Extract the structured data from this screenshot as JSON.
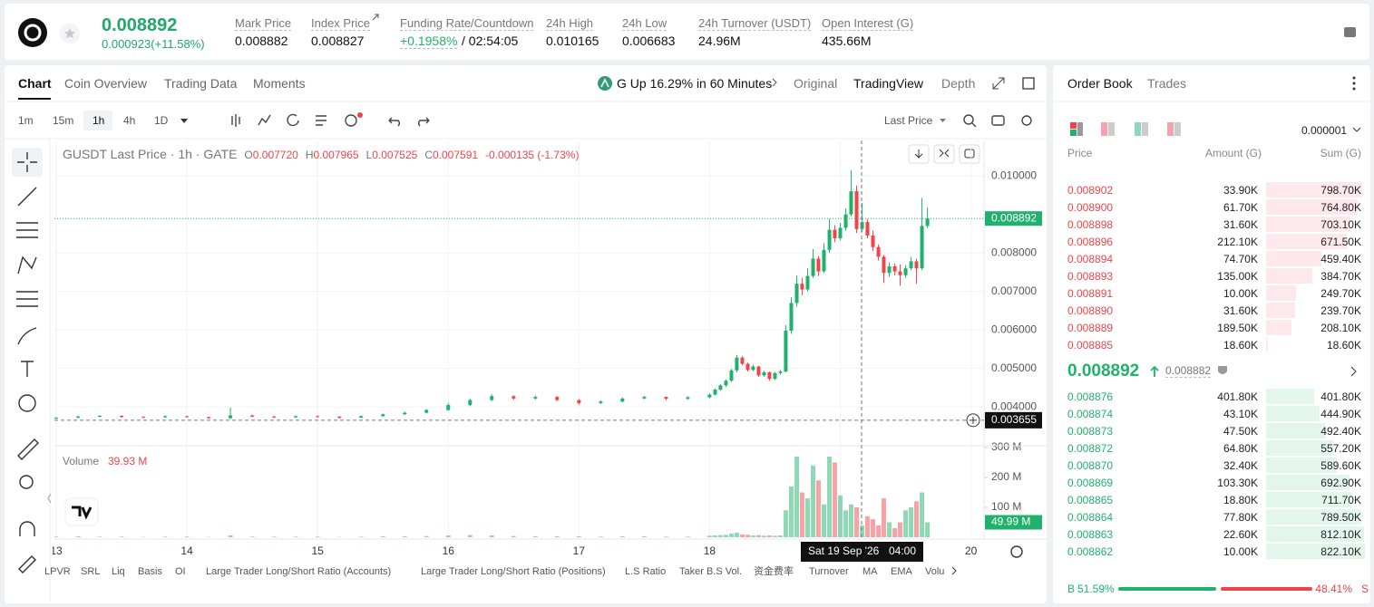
{
  "header": {
    "price": "0.008892",
    "change": "0.000923(+11.58%)",
    "stats": [
      {
        "label": "Mark Price",
        "value": "0.008882"
      },
      {
        "label": "Index Price",
        "value": "0.008827"
      },
      {
        "label": "Funding Rate/Countdown",
        "value": "+0.1958%",
        "countdown": "/ 02:54:05"
      },
      {
        "label": "24h High",
        "value": "0.010165"
      },
      {
        "label": "24h Low",
        "value": "0.006683"
      },
      {
        "label": "24h Turnover (USDT)",
        "value": "24.96M"
      },
      {
        "label": "Open Interest (G)",
        "value": "435.66M"
      }
    ]
  },
  "tabs": [
    "Chart",
    "Coin Overview",
    "Trading Data",
    "Moments"
  ],
  "banner": "G Up 16.29% in 60 Minutes",
  "views": [
    "Original",
    "TradingView",
    "Depth"
  ],
  "intervals": [
    "1m",
    "15m",
    "1h",
    "4h",
    "1D"
  ],
  "price_source": "Last Price",
  "indicators": [
    "LPVR",
    "SRL",
    "Liq",
    "Basis",
    "OI",
    "Large Trader Long/Short Ratio (Accounts)",
    "Large Trader Long/Short Ratio (Positions)",
    "L.S Ratio",
    "Taker B.S Vol.",
    "资金费率",
    "Turnover",
    "MA",
    "EMA",
    "Volu"
  ],
  "chart_data": {
    "type": "candlestick",
    "title": "GUSDT Last Price · 1h · GATE",
    "ohlc_legend": [
      {
        "key": "O",
        "value": "0.007720"
      },
      {
        "key": "H",
        "value": "0.007965"
      },
      {
        "key": "L",
        "value": "0.007525"
      },
      {
        "key": "C",
        "value": "0.007591"
      }
    ],
    "change": "-0.000135 (-1.73%)",
    "x": [
      13,
      13.167,
      13.333,
      13.5,
      13.667,
      13.833,
      14,
      14.167,
      14.333,
      14.5,
      14.667,
      14.833,
      15,
      15.167,
      15.333,
      15.5,
      15.667,
      15.833,
      16,
      16.167,
      16.333,
      16.5,
      16.667,
      16.833,
      17,
      17.167,
      17.333,
      17.5,
      17.667,
      17.833,
      18,
      18.042,
      18.083,
      18.125,
      18.167,
      18.208,
      18.25,
      18.292,
      18.333,
      18.375,
      18.417,
      18.458,
      18.5,
      18.542,
      18.583,
      18.625,
      18.667,
      18.708,
      18.75,
      18.792,
      18.833,
      18.875,
      18.917,
      18.958,
      19,
      19.042,
      19.083,
      19.125,
      19.167,
      19.208,
      19.25,
      19.292,
      19.333,
      19.375,
      19.417,
      19.458,
      19.5,
      19.542,
      19.583,
      19.625,
      19.667
    ],
    "ohlc": [
      [
        0.0037,
        0.00374,
        0.00369,
        0.00372
      ],
      [
        0.00372,
        0.00377,
        0.00371,
        0.00375
      ],
      [
        0.00375,
        0.00379,
        0.00373,
        0.00377
      ],
      [
        0.00377,
        0.00378,
        0.00372,
        0.00374
      ],
      [
        0.00374,
        0.00376,
        0.00371,
        0.00373
      ],
      [
        0.00373,
        0.00378,
        0.00372,
        0.00376
      ],
      [
        0.00376,
        0.00377,
        0.00372,
        0.00374
      ],
      [
        0.00374,
        0.00375,
        0.00369,
        0.00371
      ],
      [
        0.00371,
        0.00398,
        0.00368,
        0.00378
      ],
      [
        0.00378,
        0.0038,
        0.00373,
        0.00375
      ],
      [
        0.00375,
        0.00377,
        0.00371,
        0.00373
      ],
      [
        0.00373,
        0.00378,
        0.00372,
        0.00376
      ],
      [
        0.00376,
        0.00378,
        0.00373,
        0.00375
      ],
      [
        0.00375,
        0.00376,
        0.0037,
        0.00372
      ],
      [
        0.00372,
        0.00378,
        0.00371,
        0.00376
      ],
      [
        0.00376,
        0.00383,
        0.00375,
        0.00381
      ],
      [
        0.00381,
        0.00388,
        0.00379,
        0.00385
      ],
      [
        0.00385,
        0.00395,
        0.00383,
        0.00392
      ],
      [
        0.00392,
        0.0041,
        0.0039,
        0.00405
      ],
      [
        0.00405,
        0.00422,
        0.00402,
        0.00418
      ],
      [
        0.00418,
        0.00433,
        0.00415,
        0.00428
      ],
      [
        0.00428,
        0.0043,
        0.00418,
        0.00422
      ],
      [
        0.00422,
        0.0043,
        0.00419,
        0.00426
      ],
      [
        0.00426,
        0.00428,
        0.00415,
        0.00418
      ],
      [
        0.00418,
        0.0042,
        0.00406,
        0.0041
      ],
      [
        0.0041,
        0.00417,
        0.00408,
        0.00414
      ],
      [
        0.00414,
        0.00425,
        0.00412,
        0.00422
      ],
      [
        0.00422,
        0.00429,
        0.0042,
        0.00426
      ],
      [
        0.00426,
        0.00427,
        0.00418,
        0.00421
      ],
      [
        0.00421,
        0.00428,
        0.00419,
        0.00425
      ],
      [
        0.00425,
        0.00435,
        0.00423,
        0.00432
      ],
      [
        0.00432,
        0.00448,
        0.0043,
        0.00445
      ],
      [
        0.00445,
        0.00459,
        0.00442,
        0.00456
      ],
      [
        0.00456,
        0.00471,
        0.00452,
        0.00468
      ],
      [
        0.00468,
        0.00499,
        0.00465,
        0.00495
      ],
      [
        0.00495,
        0.00535,
        0.0049,
        0.00528
      ],
      [
        0.00528,
        0.00532,
        0.00508,
        0.00512
      ],
      [
        0.00512,
        0.00515,
        0.00492,
        0.00496
      ],
      [
        0.00496,
        0.0051,
        0.00493,
        0.00505
      ],
      [
        0.00505,
        0.00507,
        0.00478,
        0.00482
      ],
      [
        0.00482,
        0.00494,
        0.00479,
        0.0049
      ],
      [
        0.0049,
        0.00492,
        0.00468,
        0.00473
      ],
      [
        0.00473,
        0.00491,
        0.0047,
        0.00488
      ],
      [
        0.00488,
        0.00496,
        0.00484,
        0.00492
      ],
      [
        0.00492,
        0.00612,
        0.0049,
        0.00598
      ],
      [
        0.00598,
        0.00685,
        0.0059,
        0.0067
      ],
      [
        0.0067,
        0.00742,
        0.0066,
        0.0072
      ],
      [
        0.0072,
        0.00735,
        0.0069,
        0.00705
      ],
      [
        0.00705,
        0.0076,
        0.007,
        0.0074
      ],
      [
        0.0074,
        0.0081,
        0.00735,
        0.00785
      ],
      [
        0.00785,
        0.00792,
        0.0074,
        0.00752
      ],
      [
        0.00752,
        0.00825,
        0.00748,
        0.00808
      ],
      [
        0.00808,
        0.00888,
        0.008,
        0.0086
      ],
      [
        0.0086,
        0.00872,
        0.00828,
        0.00838
      ],
      [
        0.00838,
        0.00878,
        0.00832,
        0.00865
      ],
      [
        0.00865,
        0.00915,
        0.00858,
        0.009
      ],
      [
        0.009,
        0.01015,
        0.00895,
        0.0096
      ],
      [
        0.0096,
        0.00975,
        0.00852,
        0.00862
      ],
      [
        0.00862,
        0.0093,
        0.00855,
        0.0088
      ],
      [
        0.0088,
        0.00888,
        0.00838,
        0.00845
      ],
      [
        0.00845,
        0.00858,
        0.00805,
        0.00815
      ],
      [
        0.00815,
        0.00822,
        0.0078,
        0.0079
      ],
      [
        0.0079,
        0.00795,
        0.00722,
        0.00748
      ],
      [
        0.00748,
        0.00775,
        0.00738,
        0.00765
      ],
      [
        0.00765,
        0.00772,
        0.00742,
        0.00752
      ],
      [
        0.00752,
        0.0077,
        0.00715,
        0.00742
      ],
      [
        0.00742,
        0.00768,
        0.00735,
        0.0076
      ],
      [
        0.0076,
        0.0079,
        0.00755,
        0.00778
      ],
      [
        0.00778,
        0.00785,
        0.0072,
        0.0076
      ],
      [
        0.0076,
        0.00943,
        0.00755,
        0.0087
      ],
      [
        0.0087,
        0.00918,
        0.00865,
        0.008892
      ]
    ],
    "volume": [
      2,
      3,
      2,
      2,
      1,
      2,
      2,
      1,
      6,
      2,
      2,
      2,
      2,
      1,
      2,
      3,
      3,
      4,
      6,
      7,
      6,
      4,
      3,
      3,
      3,
      2,
      3,
      3,
      2,
      2,
      5,
      6,
      7,
      8,
      12,
      15,
      9,
      8,
      6,
      7,
      5,
      6,
      5,
      6,
      90,
      170,
      270,
      150,
      130,
      240,
      190,
      110,
      270,
      250,
      140,
      90,
      110,
      100,
      39.93,
      70,
      60,
      40,
      130,
      50,
      30,
      50,
      90,
      100,
      120,
      150,
      49.99
    ],
    "xlim": [
      13,
      20.1
    ],
    "xticks": [
      13,
      14,
      15,
      16,
      17,
      18,
      19,
      20
    ],
    "ylim": [
      0.00304,
      0.01092
    ],
    "yticks": [
      {
        "value": 0.004,
        "label": "0.004000"
      },
      {
        "value": 0.005,
        "label": "0.005000"
      },
      {
        "value": 0.006,
        "label": "0.006000"
      },
      {
        "value": 0.007,
        "label": "0.007000"
      },
      {
        "value": 0.008,
        "label": "0.008000"
      },
      {
        "value": 0.01,
        "label": "0.010000"
      }
    ],
    "last_price": {
      "value": 0.008892,
      "label": "0.008892"
    },
    "crosshair": {
      "price": {
        "value": 0.003655,
        "label": "0.003655"
      },
      "date": "Sat 19 Sep '26",
      "time": "04:00"
    },
    "volume_panel": {
      "title": "Volume",
      "value_label": "39.93 M",
      "ylim": [
        0,
        300
      ],
      "yticks": [
        {
          "value": 100,
          "label": "100 M"
        },
        {
          "value": 200,
          "label": "200 M"
        },
        {
          "value": 300,
          "label": "300 M"
        }
      ],
      "last": {
        "value": 49.99,
        "label": "49.99 M"
      }
    },
    "up_color": "#20b26c",
    "down_color": "#ef454a",
    "grid": true
  },
  "order_book": {
    "tabs": [
      "Order Book",
      "Trades"
    ],
    "precision": "0.000001",
    "headers": [
      "Price",
      "Amount (G)",
      "Sum (G)"
    ],
    "asks": [
      [
        "0.008902",
        "33.90K",
        "798.70K"
      ],
      [
        "0.008900",
        "61.70K",
        "764.80K"
      ],
      [
        "0.008898",
        "31.60K",
        "703.10K"
      ],
      [
        "0.008896",
        "212.10K",
        "671.50K"
      ],
      [
        "0.008894",
        "74.70K",
        "459.40K"
      ],
      [
        "0.008893",
        "135.00K",
        "384.70K"
      ],
      [
        "0.008891",
        "10.00K",
        "249.70K"
      ],
      [
        "0.008890",
        "31.60K",
        "239.70K"
      ],
      [
        "0.008889",
        "189.50K",
        "208.10K"
      ],
      [
        "0.008885",
        "18.60K",
        "18.60K"
      ]
    ],
    "last_price": "0.008892",
    "mark_price": "0.008882",
    "bids": [
      [
        "0.008876",
        "401.80K",
        "401.80K"
      ],
      [
        "0.008874",
        "43.10K",
        "444.90K"
      ],
      [
        "0.008873",
        "47.50K",
        "492.40K"
      ],
      [
        "0.008872",
        "64.80K",
        "557.20K"
      ],
      [
        "0.008870",
        "32.40K",
        "589.60K"
      ],
      [
        "0.008869",
        "103.30K",
        "692.90K"
      ],
      [
        "0.008865",
        "18.80K",
        "711.70K"
      ],
      [
        "0.008864",
        "77.80K",
        "789.50K"
      ],
      [
        "0.008863",
        "22.60K",
        "812.10K"
      ],
      [
        "0.008862",
        "10.00K",
        "822.10K"
      ]
    ],
    "buy": {
      "side": "B",
      "ratio": "51.59%"
    },
    "sell": {
      "ratio": "48.41%",
      "side": "S"
    }
  }
}
